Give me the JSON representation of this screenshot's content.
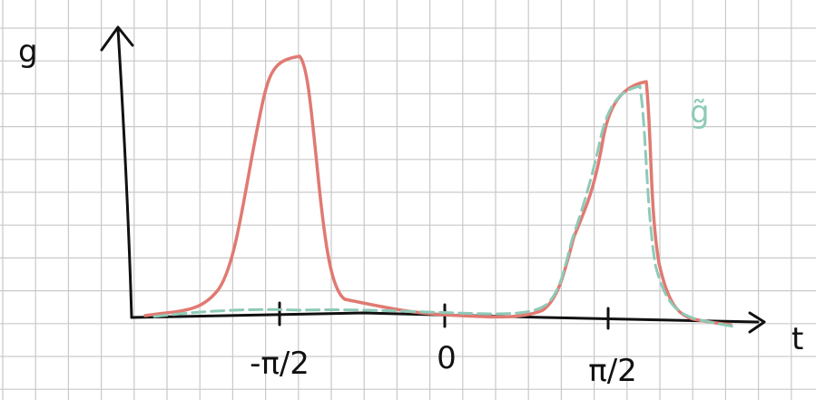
{
  "axes": {
    "y_label": "g",
    "x_label": "t"
  },
  "ticks": [
    "-π/2",
    "0",
    "π/2"
  ],
  "curve_labels": [
    "g̃"
  ]
}
